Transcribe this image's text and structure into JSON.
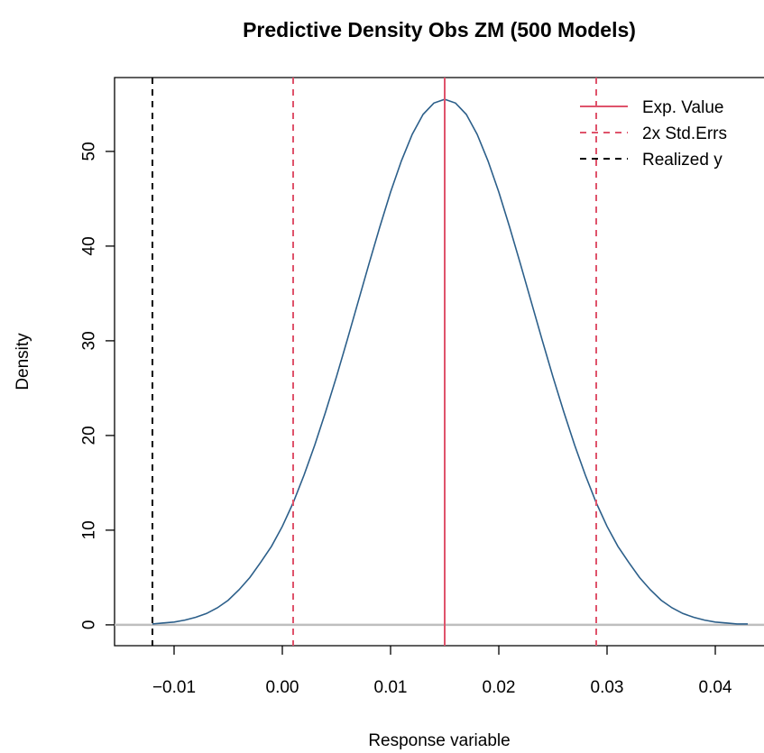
{
  "chart_data": {
    "type": "line",
    "title": "Predictive Density Obs ZM (500 Models)",
    "xlabel": "Response variable",
    "ylabel": "Density",
    "xlim": [
      -0.0155,
      0.0445
    ],
    "ylim": [
      -2.2,
      57.8
    ],
    "x_ticks": [
      -0.01,
      0.0,
      0.01,
      0.02,
      0.03,
      0.04
    ],
    "x_tick_labels": [
      "−0.01",
      "0.00",
      "0.01",
      "0.02",
      "0.03",
      "0.04"
    ],
    "y_ticks": [
      0,
      10,
      20,
      30,
      40,
      50
    ],
    "y_tick_labels": [
      "0",
      "10",
      "20",
      "30",
      "40",
      "50"
    ],
    "series": [
      {
        "name": "density",
        "color": "#2c5f8a",
        "x": [
          -0.012,
          -0.011,
          -0.01,
          -0.009,
          -0.008,
          -0.007,
          -0.006,
          -0.005,
          -0.004,
          -0.003,
          -0.002,
          -0.001,
          0.0,
          0.001,
          0.002,
          0.003,
          0.004,
          0.005,
          0.006,
          0.007,
          0.008,
          0.009,
          0.01,
          0.011,
          0.012,
          0.013,
          0.014,
          0.015,
          0.016,
          0.017,
          0.018,
          0.019,
          0.02,
          0.021,
          0.022,
          0.023,
          0.024,
          0.025,
          0.026,
          0.027,
          0.028,
          0.029,
          0.03,
          0.031,
          0.032,
          0.033,
          0.034,
          0.035,
          0.036,
          0.037,
          0.038,
          0.039,
          0.04,
          0.041,
          0.042,
          0.043
        ],
        "y": [
          0.1,
          0.2,
          0.3,
          0.5,
          0.8,
          1.2,
          1.8,
          2.6,
          3.7,
          5.0,
          6.6,
          8.3,
          10.4,
          12.9,
          15.8,
          19.0,
          22.5,
          26.2,
          30.1,
          34.1,
          38.1,
          42.0,
          45.7,
          49.0,
          51.8,
          53.9,
          55.1,
          55.5,
          55.1,
          53.9,
          51.8,
          49.0,
          45.7,
          42.0,
          38.1,
          34.1,
          30.1,
          26.2,
          22.5,
          19.0,
          15.8,
          12.9,
          10.4,
          8.3,
          6.6,
          5.0,
          3.7,
          2.6,
          1.8,
          1.2,
          0.8,
          0.5,
          0.3,
          0.2,
          0.1,
          0.1
        ]
      }
    ],
    "baseline": {
      "y": 0,
      "color": "#bebebe"
    },
    "vlines": [
      {
        "x": 0.015,
        "color": "#df536b",
        "dash": "solid"
      },
      {
        "x": 0.001,
        "color": "#df536b",
        "dash": "dashed"
      },
      {
        "x": 0.029,
        "color": "#df536b",
        "dash": "dashed"
      },
      {
        "x": -0.012,
        "color": "#000000",
        "dash": "dashed"
      }
    ],
    "legend": {
      "position": "top-right",
      "entries": [
        {
          "label": "Exp. Value",
          "color": "#df536b",
          "dash": "solid"
        },
        {
          "label": "2x Std.Errs",
          "color": "#df536b",
          "dash": "dashed"
        },
        {
          "label": "Realized y",
          "color": "#000000",
          "dash": "dashed"
        }
      ]
    },
    "grid": false
  }
}
